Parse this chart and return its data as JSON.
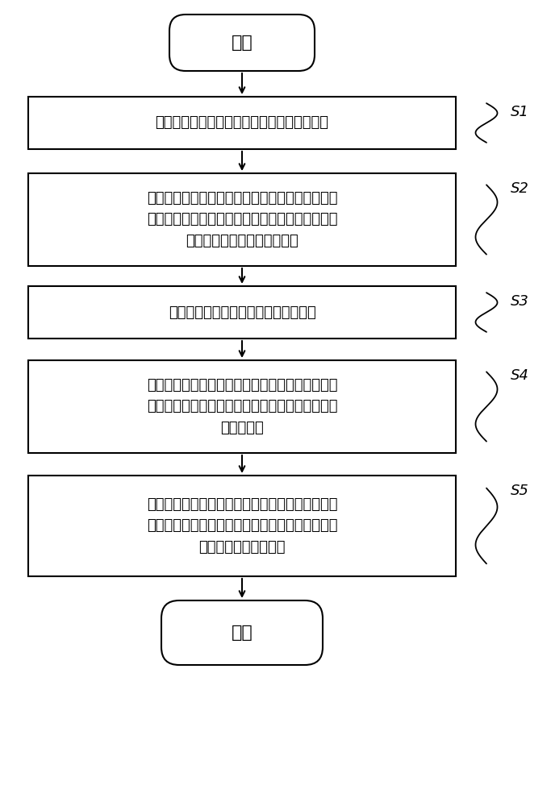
{
  "background_color": "#ffffff",
  "start_label": "开始",
  "end_label": "结束",
  "steps": [
    {
      "id": "S1",
      "text": "将站场基本信息按预设协议写入站场数据文件",
      "nlines": 1
    },
    {
      "id": "S2",
      "text": "按照预设的数据格式读取站场数据文件，将对应的\n站场元素基本信息存储于服务器端的数据库中，所\n述服务器端包括调车防护系统",
      "nlines": 3
    },
    {
      "id": "S3",
      "text": "将存储在数据库中的数据推送到客户端",
      "nlines": 1
    },
    {
      "id": "S4",
      "text": "客户端基于可缩放矢量图形绘图技术建立坐标系，\n对站场元素基本信息的关联关系进行解析，绘制站\n场基础图形",
      "nlines": 3
    },
    {
      "id": "S5",
      "text": "实时传输机车和站场的实时数据，解析后存储于服\n务器端的数据库，并推送到客户端，实现站场图形\n的实时数据显示与刷新",
      "nlines": 3
    }
  ],
  "box_color": "#000000",
  "box_fill": "#ffffff",
  "text_color": "#000000",
  "arrow_color": "#000000",
  "font_size": 13,
  "label_font_size": 13
}
